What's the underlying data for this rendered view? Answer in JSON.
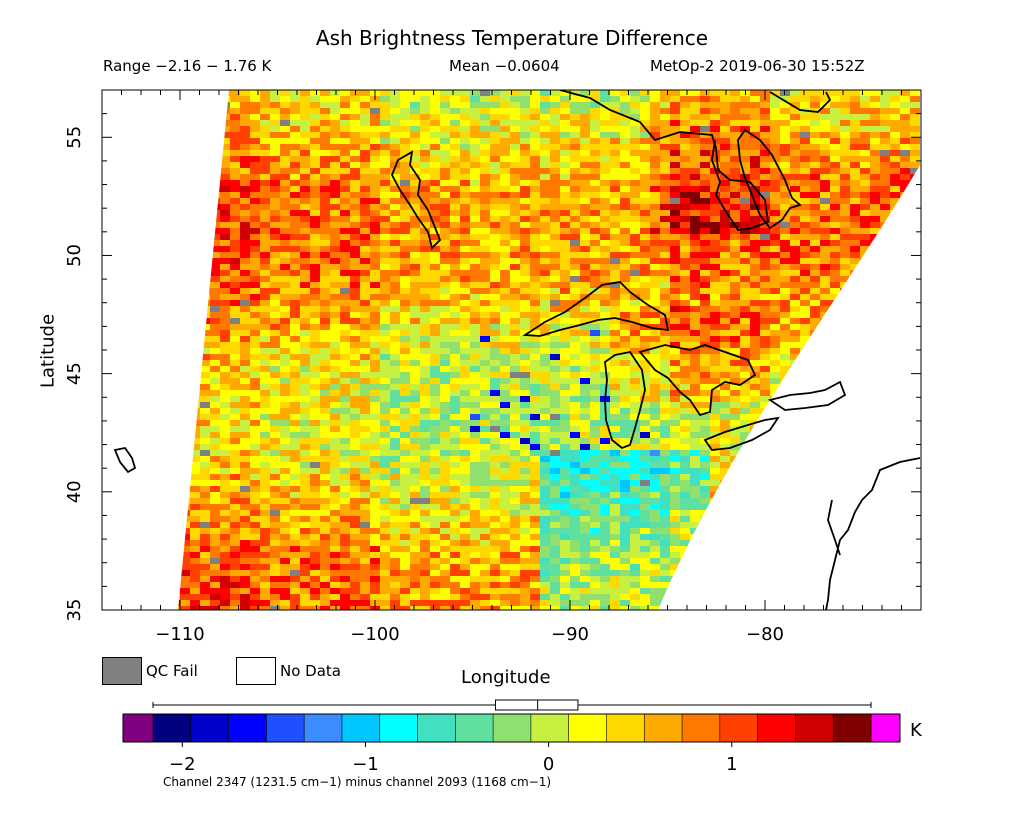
{
  "header": {
    "title": "Ash Brightness Temperature Difference",
    "range_text": "Range −2.16 − 1.76 K",
    "mean_text": "Mean −0.0604",
    "satellite_time": "MetOp-2 2019-06-30 15:52Z"
  },
  "legend": {
    "qc_fail_label": "QC Fail",
    "no_data_label": "No Data",
    "qc_fail_color": "#808080",
    "no_data_color": "#ffffff"
  },
  "colorbar": {
    "unit": "K",
    "ticks": [
      {
        "label": "−2",
        "value": -2
      },
      {
        "label": "−1",
        "value": -1
      },
      {
        "label": "0",
        "value": 0
      },
      {
        "label": "1",
        "value": 1
      }
    ],
    "under_color": "#800080",
    "over_color": "#ff00ff",
    "colors": [
      "#000080",
      "#0000cd",
      "#0000ff",
      "#1e50ff",
      "#3c8cff",
      "#00c8ff",
      "#00ffff",
      "#40e0c0",
      "#60e0a0",
      "#90e070",
      "#c8f040",
      "#ffff00",
      "#ffd800",
      "#ffaa00",
      "#ff7800",
      "#ff4000",
      "#ff0000",
      "#d00000",
      "#800000"
    ],
    "boxplot": {
      "min": -2.16,
      "q1": -0.29,
      "median": -0.06,
      "q3": 0.16,
      "max": 1.76
    }
  },
  "footnote": "Channel 2347 (1231.5 cm−1) minus channel 2093 (1168 cm−1)",
  "chart_data": {
    "type": "heatmap",
    "title": "Ash Brightness Temperature Difference",
    "xlabel": "Longitude",
    "ylabel": "Latitude",
    "xlim": [
      -114,
      -72
    ],
    "ylim": [
      35,
      57
    ],
    "xticks": [
      {
        "label": "−110",
        "value": -110
      },
      {
        "label": "−100",
        "value": -100
      },
      {
        "label": "−90",
        "value": -90
      },
      {
        "label": "−80",
        "value": -80
      }
    ],
    "yticks": [
      {
        "label": "35",
        "value": 35
      },
      {
        "label": "40",
        "value": 40
      },
      {
        "label": "45",
        "value": 45
      },
      {
        "label": "50",
        "value": 50
      },
      {
        "label": "55",
        "value": 55
      }
    ],
    "value_range": [
      -2.16,
      1.76
    ],
    "mean": -0.0604,
    "units": "K"
  }
}
